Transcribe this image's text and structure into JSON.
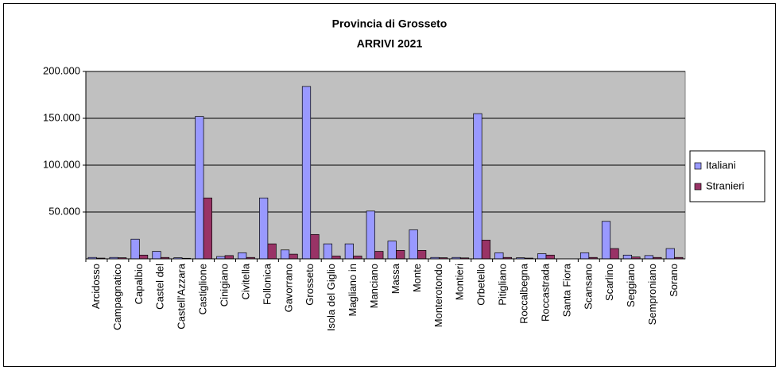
{
  "chart_data": {
    "type": "bar",
    "title": "Provincia di Grosseto",
    "subtitle": "ARRIVI  2021",
    "categories": [
      "Arcidosso",
      "Campagnatico",
      "Capalbio",
      "Castel del",
      "Castell'Azzara",
      "Castiglione",
      "Cinigiano",
      "Civitella",
      "Follonica",
      "Gavorrano",
      "Grosseto",
      "Isola del Giglio",
      "Magliano in",
      "Manciano",
      "Massa",
      "Monte",
      "Monterotondo",
      "Montieri",
      "Orbetello",
      "Pitigliano",
      "Roccalbegna",
      "Roccastrada",
      "Santa Fiora",
      "Scansano",
      "Scarlino",
      "Seggiano",
      "Semproniano",
      "Sorano"
    ],
    "series": [
      {
        "name": "Italiani",
        "color": "#9999ff",
        "values": [
          1500,
          1500,
          21000,
          8000,
          1200,
          152000,
          2500,
          6500,
          65000,
          9500,
          184000,
          16000,
          16000,
          51000,
          19000,
          31000,
          1500,
          1500,
          155000,
          6500,
          1200,
          5500,
          0,
          6500,
          40000,
          4000,
          3500,
          11000
        ]
      },
      {
        "name": "Stranieri",
        "color": "#993366",
        "values": [
          800,
          1200,
          4000,
          1500,
          600,
          65000,
          3500,
          1500,
          16000,
          5000,
          26000,
          3000,
          3000,
          8000,
          9000,
          9000,
          1200,
          1000,
          20000,
          1500,
          800,
          4000,
          0,
          1500,
          11000,
          2000,
          1500,
          1500
        ]
      }
    ],
    "ylim": [
      0,
      200000
    ],
    "yticks": [
      {
        "value": 50000,
        "label": "50.000"
      },
      {
        "value": 100000,
        "label": "100.000"
      },
      {
        "value": 150000,
        "label": "150.000"
      },
      {
        "value": 200000,
        "label": "200.000"
      }
    ],
    "grid": true,
    "legend": "right"
  }
}
